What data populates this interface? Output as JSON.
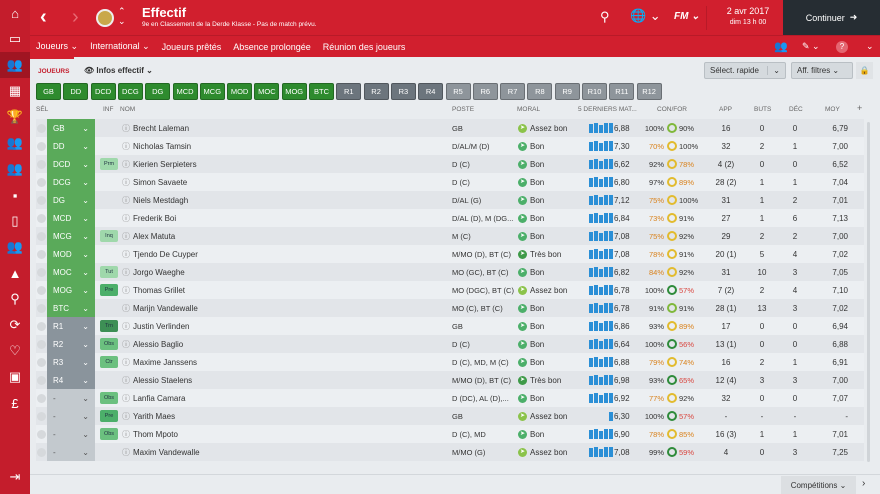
{
  "header": {
    "title": "Effectif",
    "subtitle": "9e en Classement de la Derde Klasse - Pas de match prévu.",
    "date": "2 avr 2017",
    "time": "dim 13 h 00",
    "continue": "Continuer",
    "fm": "FM"
  },
  "nav": [
    "Joueurs",
    "International",
    "Joueurs prêtés",
    "Absence prolongée",
    "Réunion des joueurs"
  ],
  "subbar": {
    "tab": "JOUEURS",
    "view": "Infos effectif",
    "quick_select": "Sélect. rapide",
    "filters": "Aff. filtres"
  },
  "positions": [
    "GB",
    "DD",
    "DCD",
    "DCG",
    "DG",
    "MCD",
    "MCG",
    "MOD",
    "MOC",
    "MOG",
    "BTC",
    "R1",
    "R2",
    "R3",
    "R4",
    "R5",
    "R6",
    "R7",
    "R8",
    "R9",
    "R10",
    "R11",
    "R12"
  ],
  "columns": {
    "sel": "SÉL",
    "inf": "INF",
    "name": "NOM",
    "poste": "POSTE",
    "moral": "MORAL",
    "form": "5 DERNIERS MAT...",
    "confor": "CON/FOR",
    "app": "APP",
    "buts": "BUTS",
    "dec": "DÉC",
    "moy": "MOY"
  },
  "players": [
    {
      "sel": "GB",
      "inf": "",
      "name": "Brecht Laleman",
      "poste": "GB",
      "moral": "Assez bon",
      "form": "6,88",
      "con": "100%",
      "for": "90%",
      "app": "16",
      "buts": "0",
      "dec": "0",
      "moy": "6,79",
      "bars": 5
    },
    {
      "sel": "DD",
      "inf": "",
      "name": "Nicholas Tamsin",
      "poste": "D/AL/M (D)",
      "moral": "Bon",
      "form": "7,30",
      "con": "70%",
      "for": "100%",
      "app": "32",
      "buts": "2",
      "dec": "1",
      "moy": "7,00",
      "bars": 5
    },
    {
      "sel": "DCD",
      "inf": "Prm",
      "name": "Kierien Serpieters",
      "poste": "D (C)",
      "moral": "Bon",
      "form": "6,62",
      "con": "92%",
      "for": "78%",
      "app": "4 (2)",
      "buts": "0",
      "dec": "0",
      "moy": "6,52",
      "bars": 5
    },
    {
      "sel": "DCG",
      "inf": "",
      "name": "Simon Savaete",
      "poste": "D (C)",
      "moral": "Bon",
      "form": "6,80",
      "con": "97%",
      "for": "89%",
      "app": "28 (2)",
      "buts": "1",
      "dec": "1",
      "moy": "7,04",
      "bars": 5
    },
    {
      "sel": "DG",
      "inf": "",
      "name": "Niels Mestdagh",
      "poste": "D/AL (G)",
      "moral": "Bon",
      "form": "7,12",
      "con": "75%",
      "for": "100%",
      "app": "31",
      "buts": "1",
      "dec": "2",
      "moy": "7,01",
      "bars": 5
    },
    {
      "sel": "MCD",
      "inf": "",
      "name": "Frederik Boi",
      "poste": "D/AL (D), M (DG...",
      "moral": "Bon",
      "form": "6,84",
      "con": "73%",
      "for": "91%",
      "app": "27",
      "buts": "1",
      "dec": "6",
      "moy": "7,13",
      "bars": 5
    },
    {
      "sel": "MCG",
      "inf": "Inq",
      "name": "Alex Matuta",
      "poste": "M (C)",
      "moral": "Bon",
      "form": "7,08",
      "con": "75%",
      "for": "92%",
      "app": "29",
      "buts": "2",
      "dec": "2",
      "moy": "7,00",
      "bars": 5
    },
    {
      "sel": "MOD",
      "inf": "",
      "name": "Tjendo De Cuyper",
      "poste": "M/MO (D), BT (C)",
      "moral": "Très bon",
      "form": "7,08",
      "con": "78%",
      "for": "91%",
      "app": "20 (1)",
      "buts": "5",
      "dec": "4",
      "moy": "7,02",
      "bars": 5
    },
    {
      "sel": "MOC",
      "inf": "Tut",
      "name": "Jorgo Waeghe",
      "poste": "MO (GC), BT (C)",
      "moral": "Bon",
      "form": "6,82",
      "con": "84%",
      "for": "92%",
      "app": "31",
      "buts": "10",
      "dec": "3",
      "moy": "7,05",
      "bars": 5
    },
    {
      "sel": "MOG",
      "inf": "Pre",
      "name": "Thomas Grillet",
      "poste": "MO (DGC), BT (C)",
      "moral": "Assez bon",
      "form": "6,78",
      "con": "100%",
      "for": "57%",
      "app": "7 (2)",
      "buts": "2",
      "dec": "4",
      "moy": "7,10",
      "bars": 5
    },
    {
      "sel": "BTC",
      "inf": "",
      "name": "Marijn Vandewalle",
      "poste": "MO (C), BT (C)",
      "moral": "Bon",
      "form": "6,78",
      "con": "91%",
      "for": "91%",
      "app": "28 (1)",
      "buts": "13",
      "dec": "3",
      "moy": "7,02",
      "bars": 5
    },
    {
      "sel": "R1",
      "inf": "Trn",
      "name": "Justin Verlinden",
      "poste": "GB",
      "moral": "Bon",
      "form": "6,86",
      "con": "93%",
      "for": "89%",
      "app": "17",
      "buts": "0",
      "dec": "0",
      "moy": "6,94",
      "bars": 5
    },
    {
      "sel": "R2",
      "inf": "Obs",
      "name": "Alessio Baglio",
      "poste": "D (C)",
      "moral": "Bon",
      "form": "6,64",
      "con": "100%",
      "for": "56%",
      "app": "13 (1)",
      "buts": "0",
      "dec": "0",
      "moy": "6,88",
      "bars": 5
    },
    {
      "sel": "R3",
      "inf": "Ctr",
      "name": "Maxime Janssens",
      "poste": "D (C), MD, M (C)",
      "moral": "Bon",
      "form": "6,88",
      "con": "79%",
      "for": "74%",
      "app": "16",
      "buts": "2",
      "dec": "1",
      "moy": "6,91",
      "bars": 5
    },
    {
      "sel": "R4",
      "inf": "",
      "name": "Alessio Staelens",
      "poste": "M/MO (D), BT (C)",
      "moral": "Très bon",
      "form": "6,98",
      "con": "93%",
      "for": "65%",
      "app": "12 (4)",
      "buts": "3",
      "dec": "3",
      "moy": "7,00",
      "bars": 5
    },
    {
      "sel": "-",
      "inf": "Obs",
      "name": "Lanfia Camara",
      "poste": "D (DC), AL (D),...",
      "moral": "Bon",
      "form": "6,92",
      "con": "77%",
      "for": "92%",
      "app": "32",
      "buts": "0",
      "dec": "0",
      "moy": "7,07",
      "bars": 5
    },
    {
      "sel": "-",
      "inf": "Pre",
      "name": "Yarith Maes",
      "poste": "GB",
      "moral": "Assez bon",
      "form": "6,30",
      "con": "100%",
      "for": "57%",
      "app": "-",
      "buts": "-",
      "dec": "-",
      "moy": "-",
      "bars": 1
    },
    {
      "sel": "-",
      "inf": "Obs",
      "name": "Thom Mpoto",
      "poste": "D (C), MD",
      "moral": "Bon",
      "form": "6,90",
      "con": "78%",
      "for": "85%",
      "app": "16 (3)",
      "buts": "1",
      "dec": "1",
      "moy": "7,01",
      "bars": 5
    },
    {
      "sel": "-",
      "inf": "",
      "name": "Maxim Vandewalle",
      "poste": "M/MO (G)",
      "moral": "Assez bon",
      "form": "7,08",
      "con": "99%",
      "for": "59%",
      "app": "4",
      "buts": "0",
      "dec": "3",
      "moy": "7,25",
      "bars": 5
    }
  ],
  "footer": {
    "competitions": "Compétitions"
  }
}
